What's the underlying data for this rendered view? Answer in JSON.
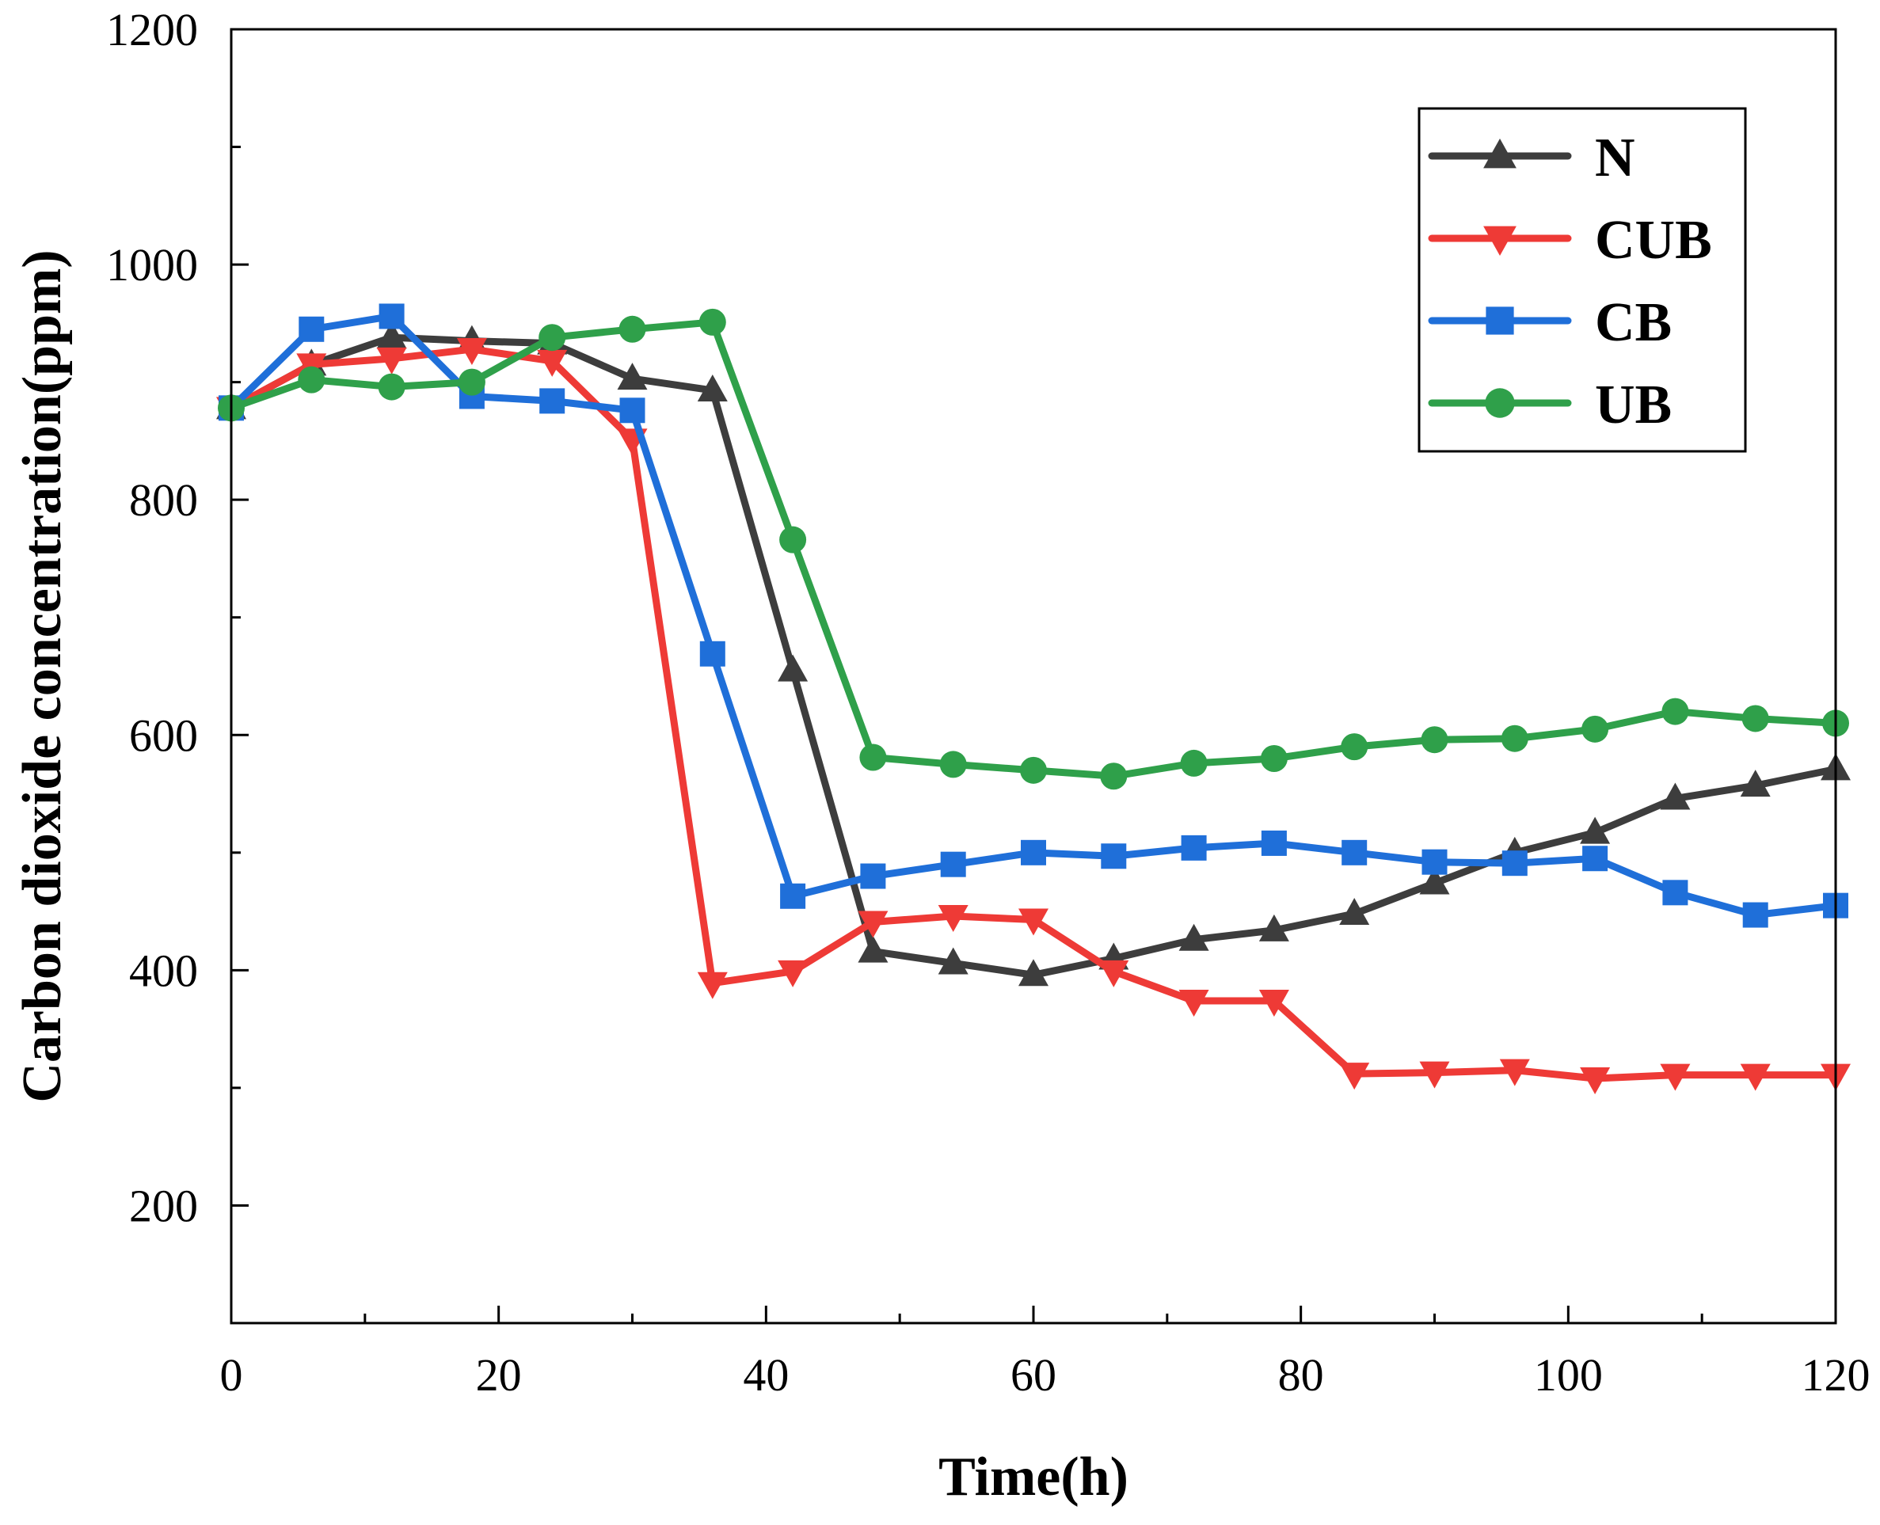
{
  "chart_data": {
    "type": "line",
    "title": "",
    "xlabel": "Time(h)",
    "ylabel": "Carbon dioxide concentration(ppm)",
    "xlim": [
      0,
      120
    ],
    "ylim": [
      100,
      1200
    ],
    "xticks": [
      "0",
      "20",
      "40",
      "60",
      "80",
      "100",
      "120"
    ],
    "yticks": [
      "200",
      "400",
      "600",
      "800",
      "1000",
      "1200"
    ],
    "grid": false,
    "legend_position": "top-right",
    "x": [
      0,
      6,
      12,
      18,
      24,
      30,
      36,
      42,
      48,
      54,
      60,
      66,
      72,
      78,
      84,
      90,
      96,
      102,
      108,
      114,
      120
    ],
    "series": [
      {
        "name": "N",
        "color": "#3d3d3d",
        "marker": "triangle-up",
        "values": [
          878,
          915,
          938,
          935,
          933,
          903,
          893,
          655,
          416,
          406,
          396,
          410,
          426,
          434,
          448,
          474,
          500,
          517,
          546,
          557,
          571
        ]
      },
      {
        "name": "CUB",
        "color": "#ee3a36",
        "marker": "triangle-down",
        "values": [
          878,
          915,
          920,
          928,
          918,
          851,
          389,
          399,
          441,
          446,
          443,
          399,
          374,
          374,
          312,
          313,
          315,
          308,
          311,
          311,
          311
        ]
      },
      {
        "name": "CB",
        "color": "#1f6fd9",
        "marker": "square",
        "values": [
          878,
          945,
          956,
          888,
          884,
          876,
          669,
          463,
          480,
          490,
          500,
          497,
          504,
          508,
          500,
          492,
          491,
          495,
          466,
          447,
          455
        ]
      },
      {
        "name": "UB",
        "color": "#2fa04a",
        "marker": "circle",
        "values": [
          878,
          902,
          896,
          900,
          938,
          945,
          951,
          766,
          581,
          575,
          570,
          565,
          576,
          580,
          590,
          596,
          597,
          605,
          620,
          614,
          610
        ]
      }
    ]
  }
}
